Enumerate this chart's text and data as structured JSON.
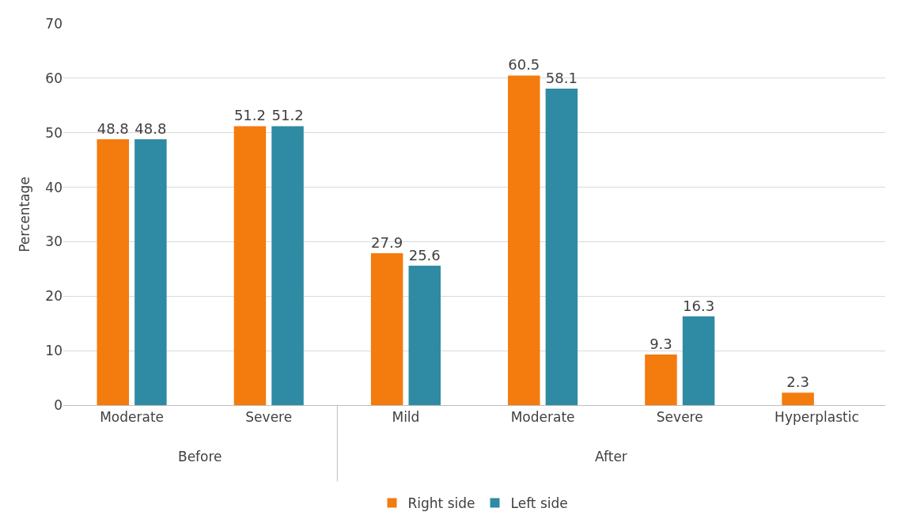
{
  "chart_data": {
    "type": "bar",
    "ylabel": "Percentage",
    "categories": [
      "Moderate",
      "Severe",
      "Mild",
      "Moderate",
      "Severe",
      "Hyperplastic"
    ],
    "series": [
      {
        "name": "Right side",
        "color": "#f47b0e",
        "values": [
          48.8,
          51.2,
          27.9,
          60.5,
          9.3,
          2.3
        ]
      },
      {
        "name": "Left side",
        "color": "#2f8aa3",
        "values": [
          48.8,
          51.2,
          25.6,
          58.1,
          16.3,
          null
        ]
      }
    ],
    "ylim": [
      0,
      70
    ],
    "yticks": [
      0,
      10,
      20,
      30,
      40,
      50,
      60,
      70
    ],
    "grid": "y",
    "legend": "bottom",
    "data_labels": true,
    "annotations": [
      "Before",
      "After"
    ]
  }
}
